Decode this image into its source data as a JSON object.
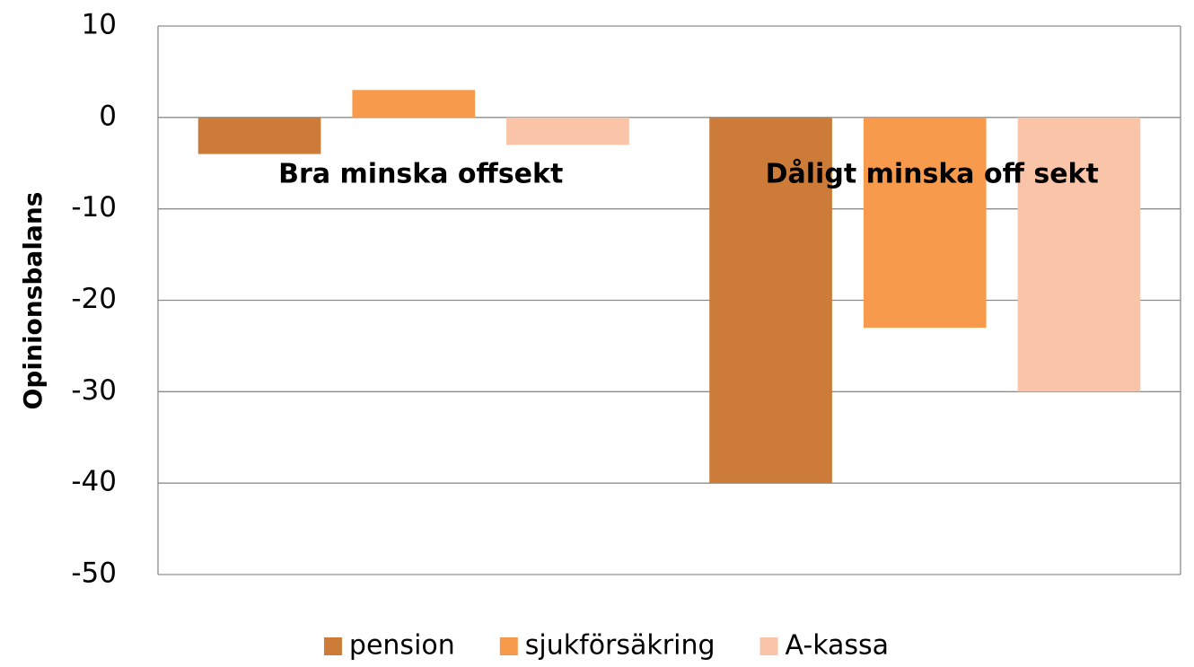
{
  "chart_data": {
    "type": "bar",
    "y_axis_label": "Opinionsbalans",
    "categories": [
      "Bra minska offsekt",
      "Dåligt minska off sekt"
    ],
    "series": [
      {
        "name": "pension",
        "color": "#cd7b38",
        "values": [
          -4,
          -40
        ]
      },
      {
        "name": "sjukförsäkring",
        "color": "#f79a4b",
        "values": [
          3,
          -23
        ]
      },
      {
        "name": "A-kassa",
        "color": "#fac4a8",
        "values": [
          -3,
          -30
        ]
      }
    ],
    "ylim": [
      -50,
      10
    ],
    "yticks": [
      -50,
      -40,
      -30,
      -20,
      -10,
      0,
      10
    ],
    "grid": true,
    "legend": "bottom"
  }
}
